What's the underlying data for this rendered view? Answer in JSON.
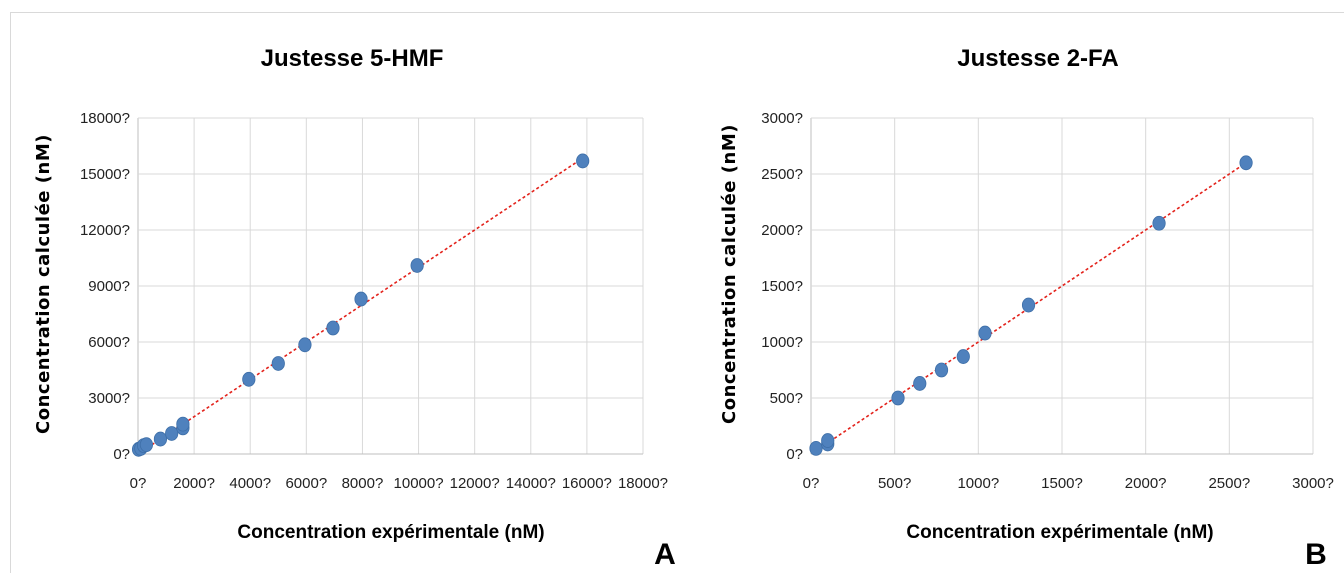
{
  "chart_data": [
    {
      "type": "scatter",
      "title": "Justesse 5-HMF",
      "xlabel": "Concentration expérimentale (nM)",
      "ylabel": "Concentration calculée (nM)",
      "panel_label": "A",
      "xlim": [
        0,
        18000
      ],
      "ylim": [
        0,
        18000
      ],
      "x_ticks": [
        0,
        2000,
        4000,
        6000,
        8000,
        10000,
        12000,
        14000,
        16000,
        18000
      ],
      "x_tick_labels": [
        "0?",
        "2000?",
        "4000?",
        "6000?",
        "8000?",
        "10000?",
        "12000?",
        "14000?",
        "16000?",
        "18000?"
      ],
      "y_ticks": [
        0,
        3000,
        6000,
        9000,
        12000,
        15000,
        18000
      ],
      "y_tick_labels": [
        "0?",
        "3000?",
        "6000?",
        "9000?",
        "12000?",
        "15000?",
        "18000?"
      ],
      "grid": true,
      "trendline": {
        "style": "dashed",
        "color": "#e3221b",
        "x": [
          0,
          15800
        ],
        "y": [
          0,
          15800
        ]
      },
      "marker_color": "#4f81bd",
      "x": [
        20,
        100,
        200,
        300,
        800,
        1200,
        1600,
        1600,
        3950,
        5000,
        5950,
        6950,
        7950,
        9950,
        15850
      ],
      "y": [
        250,
        300,
        450,
        500,
        800,
        1100,
        1400,
        1600,
        4000,
        4850,
        5850,
        6750,
        8300,
        10100,
        15700
      ]
    },
    {
      "type": "scatter",
      "title": "Justesse 2-FA",
      "xlabel": "Concentration expérimentale (nM)",
      "ylabel": "Concentration calculée (nM)",
      "panel_label": "B",
      "xlim": [
        0,
        3000
      ],
      "ylim": [
        0,
        3000
      ],
      "x_ticks": [
        0,
        500,
        1000,
        1500,
        2000,
        2500,
        3000
      ],
      "x_tick_labels": [
        "0?",
        "500?",
        "1000?",
        "1500?",
        "2000?",
        "2500?",
        "3000?"
      ],
      "y_ticks": [
        0,
        500,
        1000,
        1500,
        2000,
        2500,
        3000
      ],
      "y_tick_labels": [
        "0?",
        "500?",
        "1000?",
        "1500?",
        "2000?",
        "2500?",
        "3000?"
      ],
      "grid": true,
      "trendline": {
        "style": "dashed",
        "color": "#e3221b",
        "x": [
          30,
          2600
        ],
        "y": [
          30,
          2600
        ]
      },
      "marker_color": "#4f81bd",
      "x": [
        30,
        100,
        100,
        520,
        650,
        780,
        910,
        1040,
        1300,
        2080,
        2600
      ],
      "y": [
        50,
        90,
        120,
        500,
        630,
        750,
        870,
        1080,
        1330,
        2060,
        2600
      ]
    }
  ]
}
